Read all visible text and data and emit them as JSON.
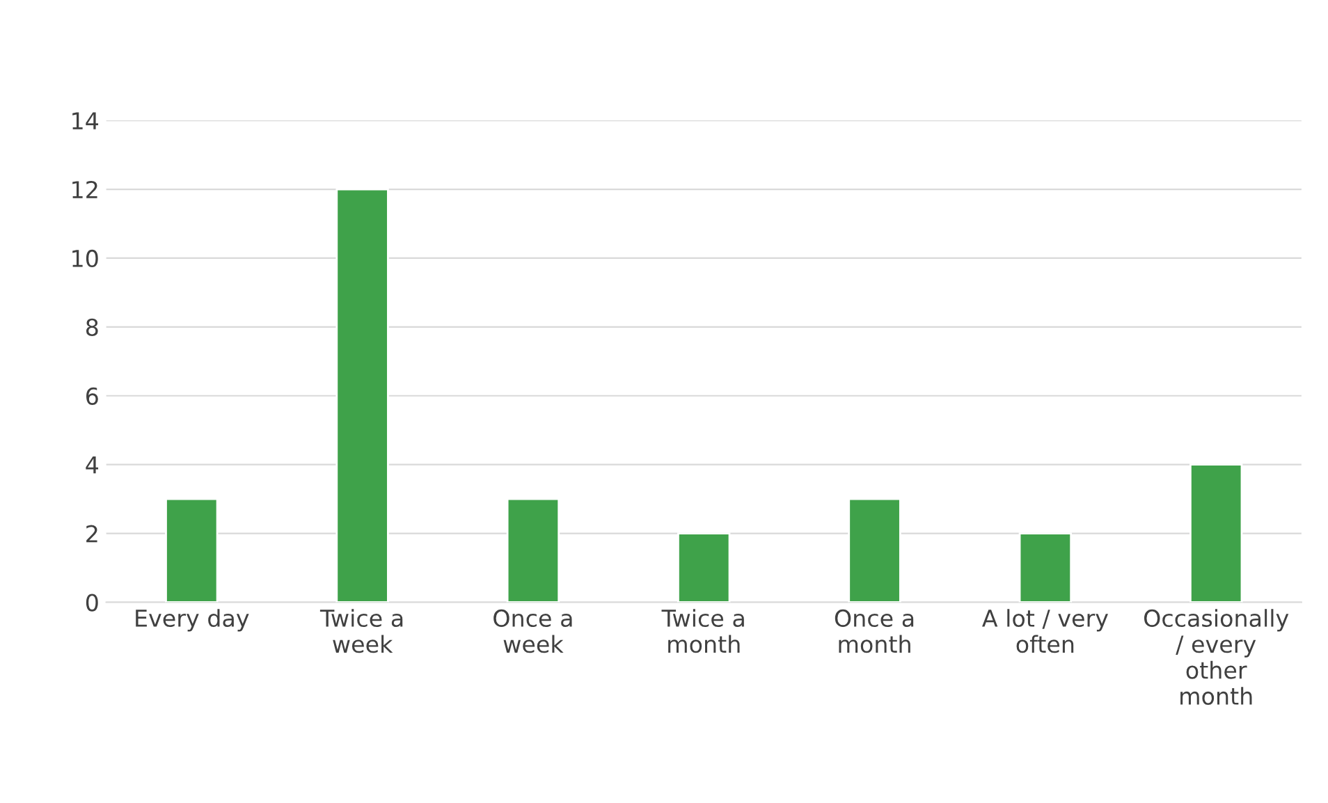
{
  "chart_data": {
    "type": "bar",
    "categories": [
      "Every day",
      "Twice a\nweek",
      "Once a\nweek",
      "Twice a\nmonth",
      "Once a\nmonth",
      "A lot / very\noften",
      "Occasionally\n/ every\nother\nmonth"
    ],
    "values": [
      3,
      12,
      3,
      2,
      3,
      2,
      4
    ],
    "color": "#3fa24a",
    "ylim": [
      0,
      14
    ],
    "yticks": [
      0,
      2,
      4,
      6,
      8,
      10,
      12,
      14
    ],
    "grid": "y"
  }
}
